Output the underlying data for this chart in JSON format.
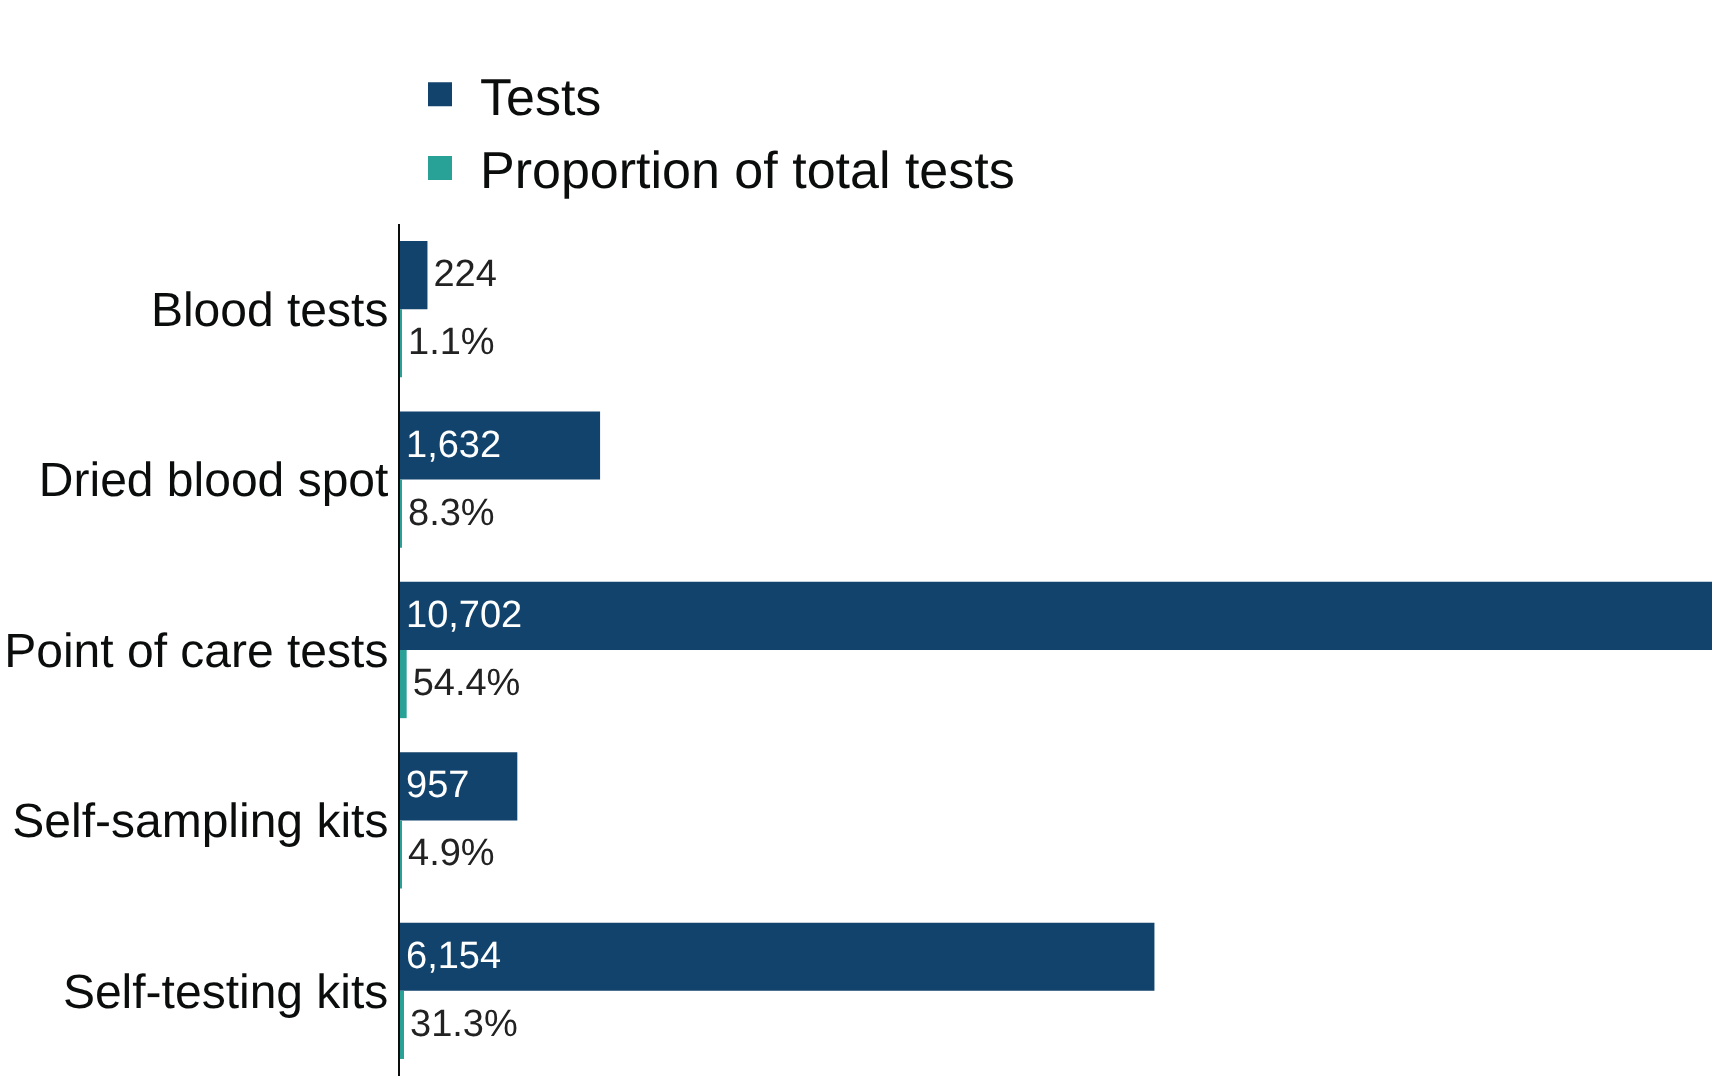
{
  "chart_data": {
    "type": "bar",
    "orientation": "horizontal",
    "categories": [
      "Blood tests",
      "Dried blood spot",
      "Point of care tests",
      "Self-sampling kits",
      "Self-testing kits"
    ],
    "series": [
      {
        "name": "Tests",
        "color": "#12436d",
        "values": [
          224,
          1632,
          10702,
          957,
          6154
        ],
        "value_labels": [
          "224",
          "1,632",
          "10,702",
          "957",
          "6,154"
        ]
      },
      {
        "name": "Proportion of total tests",
        "color": "#28a197",
        "values": [
          1.1,
          8.3,
          54.4,
          4.9,
          31.3
        ],
        "value_labels": [
          "1.1%",
          "8.3%",
          "54.4%",
          "4.9%",
          "31.3%"
        ]
      }
    ],
    "legend": "top left"
  }
}
